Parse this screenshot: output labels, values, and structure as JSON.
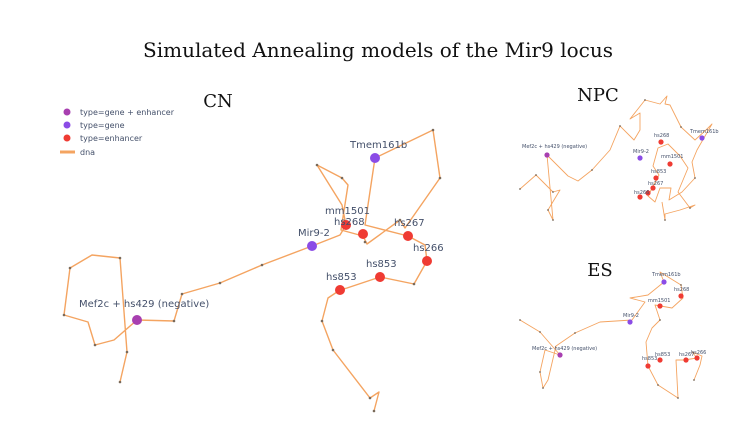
{
  "title": "Simulated Annealing models of the Mir9 locus",
  "colors": {
    "gene_enhancer": "#a83fb0",
    "gene": "#8b4ce6",
    "enhancer": "#ef3b33",
    "dna": "#f4a461"
  },
  "legend": {
    "items": [
      {
        "label": "type=gene + enhancer",
        "kind": "gene_enhancer"
      },
      {
        "label": "type=gene",
        "kind": "gene"
      },
      {
        "label": "type=enhancer",
        "kind": "enhancer"
      },
      {
        "label": "dna",
        "kind": "dna"
      }
    ]
  },
  "panels": {
    "cn": {
      "title": "CN",
      "labels": {
        "mef2c": "Mef2c + hs429 (negative)",
        "mir9": "Mir9-2",
        "tmem": "Tmem161b",
        "mm1501": "mm1501",
        "hs268": "hs268",
        "hs267": "hs267",
        "hs266": "hs266",
        "hs853a": "hs853",
        "hs853b": "hs853"
      }
    },
    "npc": {
      "title": "NPC",
      "labels": {
        "mef2c": "Mef2c + hs429 (negative)",
        "mir9": "Mir9-2",
        "tmem": "Tmem161b",
        "hs268": "hs268",
        "mm1501": "mm1501",
        "hs853": "hs853",
        "hs267": "hs267",
        "hs266": "hs266"
      }
    },
    "es": {
      "title": "ES",
      "labels": {
        "tmem": "Tmem161b",
        "hs268": "hs268",
        "mm1501": "mm1501",
        "mir9": "Mir9-2",
        "mef2c": "Mef2c + hs429 (negative)",
        "hs853a": "hs853",
        "hs853b": "hs853",
        "hs267": "hs267",
        "hs266": "hs266"
      }
    }
  }
}
